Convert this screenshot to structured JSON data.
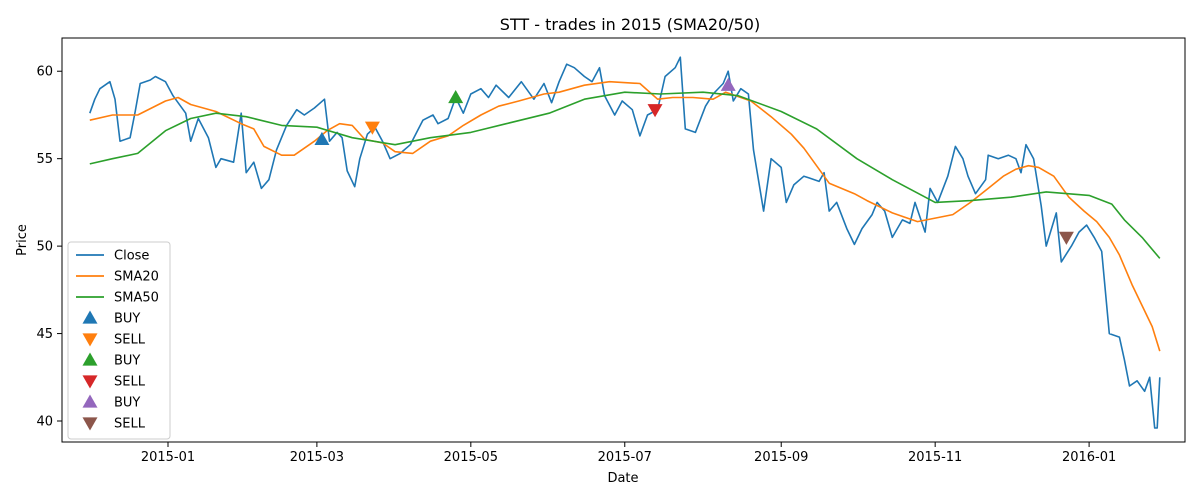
{
  "chart_data": {
    "type": "line",
    "title": "STT - trades in 2015 (SMA20/50)",
    "xlabel": "Date",
    "ylabel": "Price",
    "xlim": [
      "2014-11-20",
      "2016-02-08"
    ],
    "ylim": [
      38.8,
      61.9
    ],
    "x_ticks": [
      "2015-01-01",
      "2015-03-01",
      "2015-05-01",
      "2015-07-01",
      "2015-09-01",
      "2015-11-01",
      "2016-01-01"
    ],
    "x_tick_labels": [
      "2015-01",
      "2015-03",
      "2015-05",
      "2015-07",
      "2015-09",
      "2015-11",
      "2016-01"
    ],
    "y_ticks": [
      40,
      45,
      50,
      55,
      60
    ],
    "legend_position": "lower-left",
    "grid": false,
    "series": [
      {
        "name": "Close",
        "color": "#1f77b4",
        "points": [
          [
            "2014-12-01",
            57.6
          ],
          [
            "2014-12-03",
            58.4
          ],
          [
            "2014-12-05",
            59.0
          ],
          [
            "2014-12-09",
            59.4
          ],
          [
            "2014-12-11",
            58.4
          ],
          [
            "2014-12-13",
            56.0
          ],
          [
            "2014-12-17",
            56.2
          ],
          [
            "2014-12-19",
            57.7
          ],
          [
            "2014-12-21",
            59.3
          ],
          [
            "2014-12-25",
            59.5
          ],
          [
            "2014-12-27",
            59.7
          ],
          [
            "2014-12-31",
            59.4
          ],
          [
            "2015-01-03",
            58.6
          ],
          [
            "2015-01-08",
            57.6
          ],
          [
            "2015-01-10",
            56.0
          ],
          [
            "2015-01-13",
            57.3
          ],
          [
            "2015-01-17",
            56.2
          ],
          [
            "2015-01-20",
            54.5
          ],
          [
            "2015-01-22",
            55.0
          ],
          [
            "2015-01-27",
            54.8
          ],
          [
            "2015-01-30",
            57.6
          ],
          [
            "2015-02-01",
            54.2
          ],
          [
            "2015-02-04",
            54.8
          ],
          [
            "2015-02-07",
            53.3
          ],
          [
            "2015-02-10",
            53.8
          ],
          [
            "2015-02-13",
            55.5
          ],
          [
            "2015-02-17",
            56.9
          ],
          [
            "2015-02-21",
            57.8
          ],
          [
            "2015-02-24",
            57.5
          ],
          [
            "2015-02-28",
            57.9
          ],
          [
            "2015-03-04",
            58.4
          ],
          [
            "2015-03-06",
            56.0
          ],
          [
            "2015-03-09",
            56.5
          ],
          [
            "2015-03-11",
            56.2
          ],
          [
            "2015-03-13",
            54.3
          ],
          [
            "2015-03-16",
            53.4
          ],
          [
            "2015-03-18",
            55.0
          ],
          [
            "2015-03-21",
            56.4
          ],
          [
            "2015-03-24",
            56.8
          ],
          [
            "2015-03-27",
            56.0
          ],
          [
            "2015-03-30",
            55.0
          ],
          [
            "2015-04-03",
            55.3
          ],
          [
            "2015-04-07",
            55.8
          ],
          [
            "2015-04-12",
            57.2
          ],
          [
            "2015-04-16",
            57.5
          ],
          [
            "2015-04-18",
            57.0
          ],
          [
            "2015-04-22",
            57.3
          ],
          [
            "2015-04-25",
            58.5
          ],
          [
            "2015-04-28",
            57.6
          ],
          [
            "2015-05-01",
            58.7
          ],
          [
            "2015-05-05",
            59.0
          ],
          [
            "2015-05-08",
            58.5
          ],
          [
            "2015-05-11",
            59.2
          ],
          [
            "2015-05-16",
            58.5
          ],
          [
            "2015-05-21",
            59.4
          ],
          [
            "2015-05-26",
            58.4
          ],
          [
            "2015-05-30",
            59.3
          ],
          [
            "2015-06-02",
            58.2
          ],
          [
            "2015-06-05",
            59.4
          ],
          [
            "2015-06-08",
            60.4
          ],
          [
            "2015-06-11",
            60.2
          ],
          [
            "2015-06-15",
            59.7
          ],
          [
            "2015-06-18",
            59.4
          ],
          [
            "2015-06-21",
            60.2
          ],
          [
            "2015-06-23",
            58.6
          ],
          [
            "2015-06-27",
            57.5
          ],
          [
            "2015-06-30",
            58.3
          ],
          [
            "2015-07-04",
            57.8
          ],
          [
            "2015-07-07",
            56.3
          ],
          [
            "2015-07-10",
            57.5
          ],
          [
            "2015-07-14",
            57.8
          ],
          [
            "2015-07-17",
            59.7
          ],
          [
            "2015-07-21",
            60.2
          ],
          [
            "2015-07-23",
            60.8
          ],
          [
            "2015-07-25",
            56.7
          ],
          [
            "2015-07-29",
            56.5
          ],
          [
            "2015-08-02",
            58.0
          ],
          [
            "2015-08-05",
            58.7
          ],
          [
            "2015-08-09",
            59.3
          ],
          [
            "2015-08-11",
            60.0
          ],
          [
            "2015-08-13",
            58.3
          ],
          [
            "2015-08-16",
            59.0
          ],
          [
            "2015-08-19",
            58.7
          ],
          [
            "2015-08-21",
            55.5
          ],
          [
            "2015-08-25",
            52.0
          ],
          [
            "2015-08-28",
            55.0
          ],
          [
            "2015-09-01",
            54.5
          ],
          [
            "2015-09-03",
            52.5
          ],
          [
            "2015-09-06",
            53.5
          ],
          [
            "2015-09-10",
            54.0
          ],
          [
            "2015-09-12",
            53.9
          ],
          [
            "2015-09-16",
            53.7
          ],
          [
            "2015-09-18",
            54.2
          ],
          [
            "2015-09-20",
            52.0
          ],
          [
            "2015-09-23",
            52.5
          ],
          [
            "2015-09-27",
            51.0
          ],
          [
            "2015-09-30",
            50.1
          ],
          [
            "2015-10-03",
            51.0
          ],
          [
            "2015-10-07",
            51.8
          ],
          [
            "2015-10-09",
            52.5
          ],
          [
            "2015-10-12",
            52.0
          ],
          [
            "2015-10-15",
            50.5
          ],
          [
            "2015-10-19",
            51.5
          ],
          [
            "2015-10-22",
            51.3
          ],
          [
            "2015-10-24",
            52.5
          ],
          [
            "2015-10-28",
            50.8
          ],
          [
            "2015-10-30",
            53.3
          ],
          [
            "2015-11-02",
            52.5
          ],
          [
            "2015-11-06",
            54.0
          ],
          [
            "2015-11-09",
            55.7
          ],
          [
            "2015-11-12",
            55.0
          ],
          [
            "2015-11-14",
            54.0
          ],
          [
            "2015-11-17",
            53.0
          ],
          [
            "2015-11-21",
            53.8
          ],
          [
            "2015-11-22",
            55.2
          ],
          [
            "2015-11-26",
            55.0
          ],
          [
            "2015-11-30",
            55.2
          ],
          [
            "2015-12-03",
            55.0
          ],
          [
            "2015-12-05",
            54.2
          ],
          [
            "2015-12-07",
            55.8
          ],
          [
            "2015-12-10",
            55.0
          ],
          [
            "2015-12-13",
            52.3
          ],
          [
            "2015-12-15",
            50.0
          ],
          [
            "2015-12-19",
            51.9
          ],
          [
            "2015-12-21",
            49.1
          ],
          [
            "2015-12-25",
            50.0
          ],
          [
            "2015-12-28",
            50.8
          ],
          [
            "2015-12-31",
            51.2
          ],
          [
            "2016-01-03",
            50.5
          ],
          [
            "2016-01-06",
            49.7
          ],
          [
            "2016-01-09",
            45.0
          ],
          [
            "2016-01-13",
            44.8
          ],
          [
            "2016-01-15",
            43.5
          ],
          [
            "2016-01-17",
            42.0
          ],
          [
            "2016-01-20",
            42.3
          ],
          [
            "2016-01-23",
            41.7
          ],
          [
            "2016-01-25",
            42.5
          ],
          [
            "2016-01-27",
            39.6
          ],
          [
            "2016-01-28",
            39.6
          ],
          [
            "2016-01-29",
            42.5
          ]
        ]
      },
      {
        "name": "SMA20",
        "color": "#ff7f0e",
        "points": [
          [
            "2014-12-01",
            57.2
          ],
          [
            "2014-12-10",
            57.5
          ],
          [
            "2014-12-20",
            57.5
          ],
          [
            "2014-12-31",
            58.3
          ],
          [
            "2015-01-05",
            58.5
          ],
          [
            "2015-01-10",
            58.1
          ],
          [
            "2015-01-20",
            57.7
          ],
          [
            "2015-01-30",
            57.0
          ],
          [
            "2015-02-04",
            56.7
          ],
          [
            "2015-02-08",
            55.7
          ],
          [
            "2015-02-15",
            55.2
          ],
          [
            "2015-02-20",
            55.2
          ],
          [
            "2015-02-28",
            56.0
          ],
          [
            "2015-03-05",
            56.6
          ],
          [
            "2015-03-10",
            57.0
          ],
          [
            "2015-03-15",
            56.9
          ],
          [
            "2015-03-20",
            56.1
          ],
          [
            "2015-03-27",
            55.9
          ],
          [
            "2015-04-01",
            55.4
          ],
          [
            "2015-04-08",
            55.3
          ],
          [
            "2015-04-15",
            56.0
          ],
          [
            "2015-04-22",
            56.3
          ],
          [
            "2015-04-28",
            56.9
          ],
          [
            "2015-05-05",
            57.5
          ],
          [
            "2015-05-12",
            58.0
          ],
          [
            "2015-05-20",
            58.3
          ],
          [
            "2015-05-30",
            58.7
          ],
          [
            "2015-06-05",
            58.8
          ],
          [
            "2015-06-15",
            59.2
          ],
          [
            "2015-06-25",
            59.4
          ],
          [
            "2015-07-07",
            59.3
          ],
          [
            "2015-07-14",
            58.4
          ],
          [
            "2015-07-20",
            58.5
          ],
          [
            "2015-07-28",
            58.5
          ],
          [
            "2015-08-05",
            58.4
          ],
          [
            "2015-08-10",
            58.8
          ],
          [
            "2015-08-20",
            58.3
          ],
          [
            "2015-08-28",
            57.4
          ],
          [
            "2015-09-05",
            56.4
          ],
          [
            "2015-09-10",
            55.6
          ],
          [
            "2015-09-20",
            53.6
          ],
          [
            "2015-09-30",
            53.0
          ],
          [
            "2015-10-05",
            52.6
          ],
          [
            "2015-10-15",
            51.9
          ],
          [
            "2015-10-25",
            51.4
          ],
          [
            "2015-11-01",
            51.6
          ],
          [
            "2015-11-08",
            51.8
          ],
          [
            "2015-11-15",
            52.5
          ],
          [
            "2015-11-22",
            53.3
          ],
          [
            "2015-11-28",
            54.0
          ],
          [
            "2015-12-03",
            54.4
          ],
          [
            "2015-12-08",
            54.6
          ],
          [
            "2015-12-12",
            54.5
          ],
          [
            "2015-12-18",
            54.0
          ],
          [
            "2015-12-24",
            52.8
          ],
          [
            "2015-12-30",
            52.0
          ],
          [
            "2016-01-04",
            51.4
          ],
          [
            "2016-01-09",
            50.5
          ],
          [
            "2016-01-13",
            49.5
          ],
          [
            "2016-01-18",
            47.8
          ],
          [
            "2016-01-22",
            46.6
          ],
          [
            "2016-01-26",
            45.4
          ],
          [
            "2016-01-29",
            44.0
          ]
        ]
      },
      {
        "name": "SMA50",
        "color": "#2ca02c",
        "points": [
          [
            "2014-12-01",
            54.7
          ],
          [
            "2014-12-10",
            55.0
          ],
          [
            "2014-12-20",
            55.3
          ],
          [
            "2014-12-31",
            56.6
          ],
          [
            "2015-01-10",
            57.3
          ],
          [
            "2015-01-20",
            57.6
          ],
          [
            "2015-02-01",
            57.4
          ],
          [
            "2015-02-15",
            56.9
          ],
          [
            "2015-03-01",
            56.8
          ],
          [
            "2015-03-15",
            56.2
          ],
          [
            "2015-04-01",
            55.8
          ],
          [
            "2015-04-15",
            56.2
          ],
          [
            "2015-05-01",
            56.5
          ],
          [
            "2015-05-15",
            57.0
          ],
          [
            "2015-06-01",
            57.6
          ],
          [
            "2015-06-15",
            58.4
          ],
          [
            "2015-07-01",
            58.8
          ],
          [
            "2015-07-15",
            58.7
          ],
          [
            "2015-08-01",
            58.8
          ],
          [
            "2015-08-15",
            58.6
          ],
          [
            "2015-09-01",
            57.7
          ],
          [
            "2015-09-15",
            56.7
          ],
          [
            "2015-10-01",
            55.0
          ],
          [
            "2015-10-15",
            53.8
          ],
          [
            "2015-11-01",
            52.5
          ],
          [
            "2015-11-15",
            52.6
          ],
          [
            "2015-12-01",
            52.8
          ],
          [
            "2015-12-15",
            53.1
          ],
          [
            "2016-01-01",
            52.9
          ],
          [
            "2016-01-10",
            52.4
          ],
          [
            "2016-01-15",
            51.5
          ],
          [
            "2016-01-22",
            50.5
          ],
          [
            "2016-01-29",
            49.3
          ]
        ]
      }
    ],
    "markers": [
      {
        "name": "BUY",
        "shape": "triangle-up",
        "color": "#1f77b4",
        "x": "2015-03-03",
        "y": 56.1
      },
      {
        "name": "SELL",
        "shape": "triangle-down",
        "color": "#ff7f0e",
        "x": "2015-03-23",
        "y": 56.8
      },
      {
        "name": "BUY",
        "shape": "triangle-up",
        "color": "#2ca02c",
        "x": "2015-04-25",
        "y": 58.5
      },
      {
        "name": "SELL",
        "shape": "triangle-down",
        "color": "#d62728",
        "x": "2015-07-13",
        "y": 57.8
      },
      {
        "name": "BUY",
        "shape": "triangle-up",
        "color": "#9467bd",
        "x": "2015-08-11",
        "y": 59.2
      },
      {
        "name": "SELL",
        "shape": "triangle-down",
        "color": "#8c564b",
        "x": "2015-12-23",
        "y": 50.5
      }
    ]
  }
}
